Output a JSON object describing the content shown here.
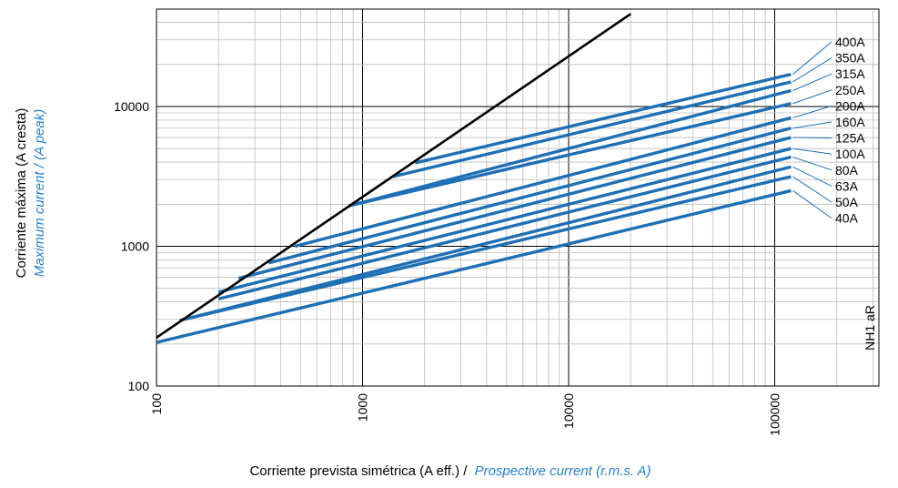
{
  "chart_data": {
    "type": "line",
    "xscale": "log",
    "yscale": "log",
    "xlim": [
      100,
      400000
    ],
    "ylim": [
      100,
      50000
    ],
    "xticks": [
      "100",
      "1000",
      "10000",
      "100000"
    ],
    "yticks": [
      "100",
      "1000",
      "10000"
    ],
    "xlabel_es": "Corriente prevista simétrica (A eff.) /",
    "xlabel_en": "Prospective current (r.m.s. A)",
    "ylabel_es": "Corriente máxima (A cresta)",
    "ylabel_en": "Maximum current / (A peak)",
    "annotation": "NH1 aR",
    "grid": true,
    "colors": {
      "series": "#1f6fb5",
      "limit": "#000000",
      "english_label": "#2a7fc9",
      "grid": "#bdbdbd",
      "major_grid": "#000000"
    },
    "limit_line": {
      "x": [
        100,
        20000
      ],
      "y": [
        222,
        46000
      ]
    },
    "series": [
      {
        "name": "400A",
        "x": [
          1800,
          120000
        ],
        "y": [
          3950,
          17000
        ]
      },
      {
        "name": "350A",
        "x": [
          1400,
          120000
        ],
        "y": [
          3150,
          15000
        ]
      },
      {
        "name": "315A",
        "x": [
          860,
          120000
        ],
        "y": [
          1950,
          13000
        ]
      },
      {
        "name": "250A",
        "x": [
          860,
          120000
        ],
        "y": [
          1950,
          10500
        ]
      },
      {
        "name": "200A",
        "x": [
          470,
          120000
        ],
        "y": [
          1000,
          8300
        ]
      },
      {
        "name": "160A",
        "x": [
          350,
          120000
        ],
        "y": [
          760,
          7000
        ]
      },
      {
        "name": "125A",
        "x": [
          250,
          120000
        ],
        "y": [
          590,
          6000
        ]
      },
      {
        "name": "100A",
        "x": [
          200,
          120000
        ],
        "y": [
          470,
          5000
        ]
      },
      {
        "name": "80A",
        "x": [
          200,
          120000
        ],
        "y": [
          420,
          4350
        ]
      },
      {
        "name": "63A",
        "x": [
          130,
          120000
        ],
        "y": [
          295,
          3700
        ]
      },
      {
        "name": "50A",
        "x": [
          130,
          120000
        ],
        "y": [
          295,
          3150
        ]
      },
      {
        "name": "40A",
        "x": [
          100,
          120000
        ],
        "y": [
          205,
          2500
        ]
      }
    ]
  }
}
